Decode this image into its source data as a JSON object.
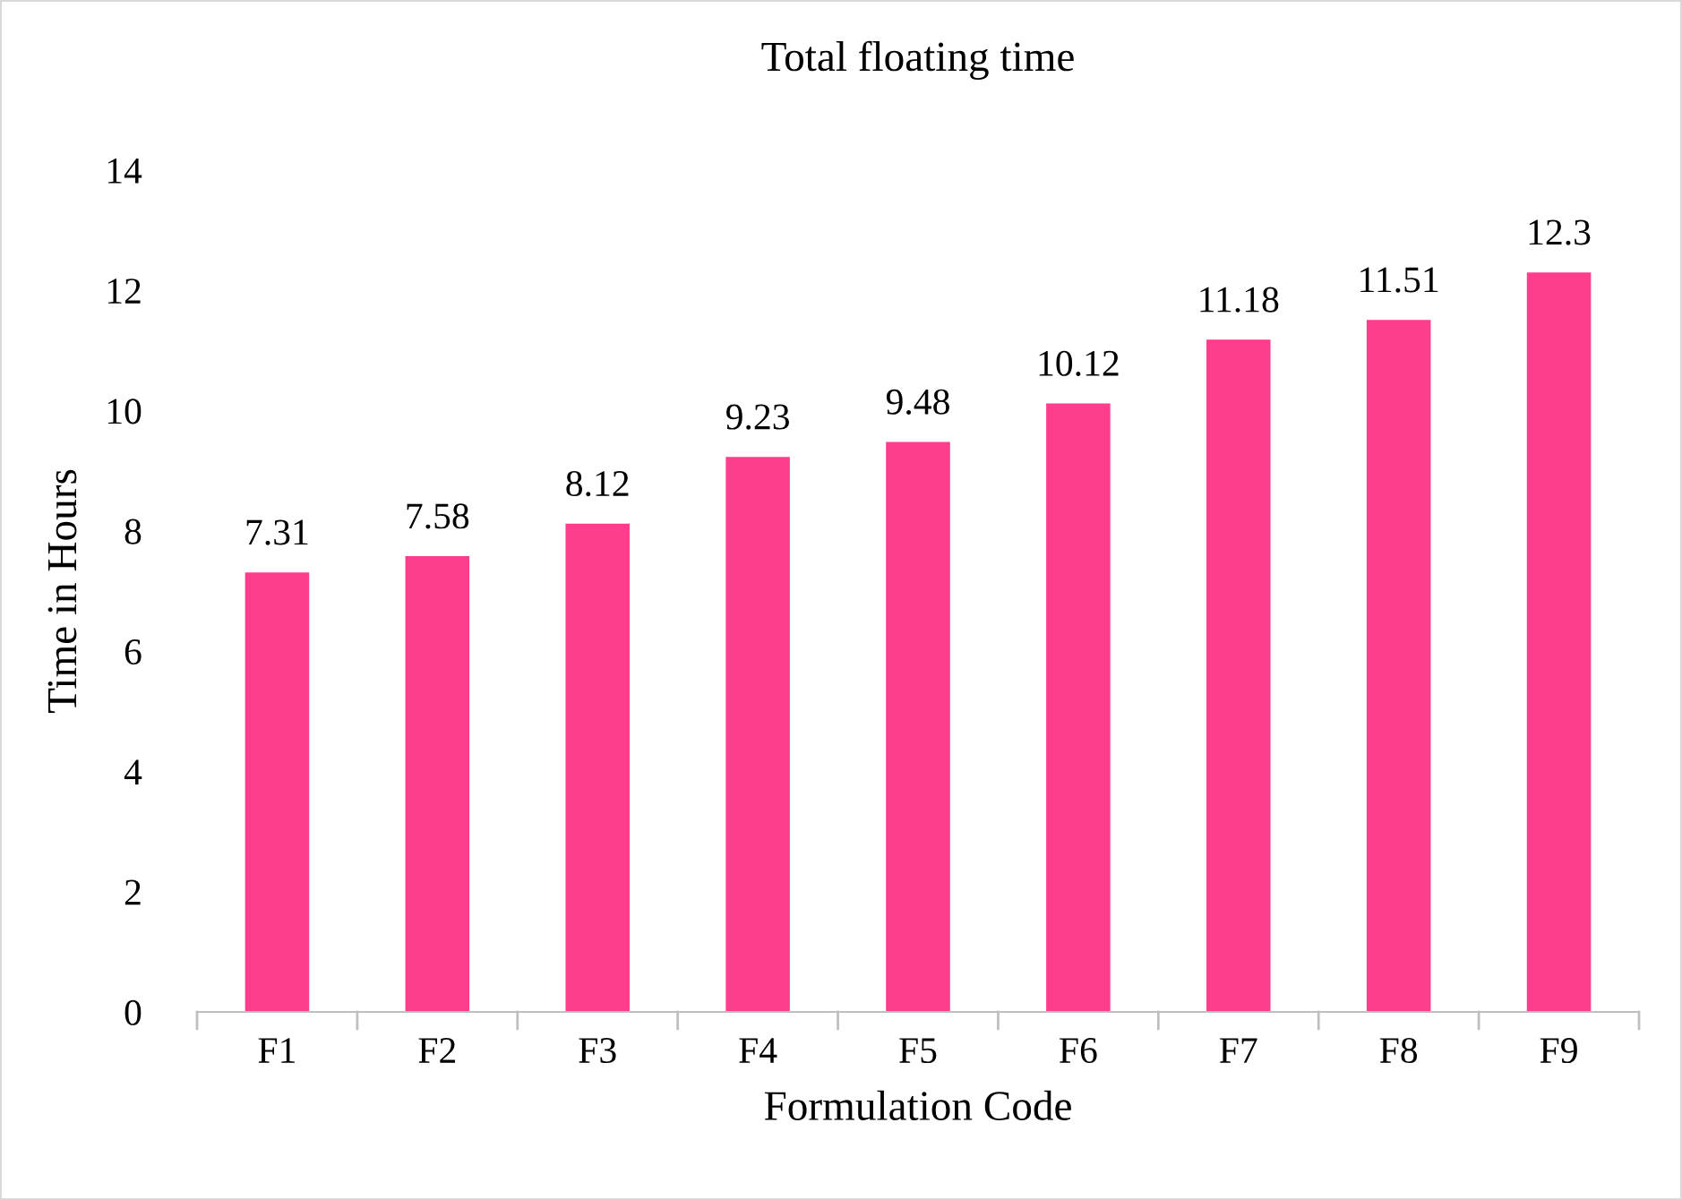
{
  "chart_data": {
    "type": "bar",
    "title": "Total floating time",
    "xlabel": "Formulation Code",
    "ylabel": "Time in Hours",
    "categories": [
      "F1",
      "F2",
      "F3",
      "F4",
      "F5",
      "F6",
      "F7",
      "F8",
      "F9"
    ],
    "values": [
      7.31,
      7.58,
      8.12,
      9.23,
      9.48,
      10.12,
      11.18,
      11.51,
      12.3
    ],
    "color": "#ff3d8d",
    "ylim": [
      0,
      14
    ],
    "yticks": [
      0,
      2,
      4,
      6,
      8,
      10,
      12,
      14
    ],
    "grid": false,
    "data_labels": true
  }
}
